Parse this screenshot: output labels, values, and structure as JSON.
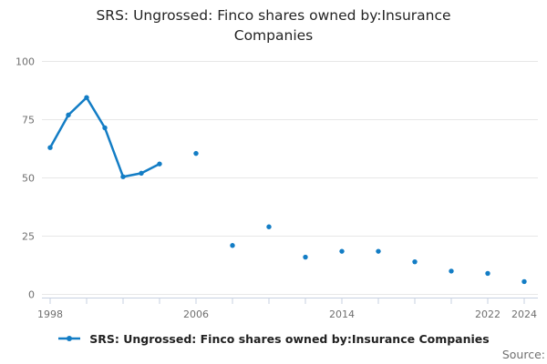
{
  "title": "SRS: Ungrossed: Finco shares owned by:Insurance Companies",
  "legend": {
    "label": "SRS: Ungrossed: Finco shares owned by:Insurance Companies",
    "marker": "line-with-dot"
  },
  "source_label": "Source:",
  "colors": {
    "line": "#137DC5",
    "grid": "#e7e7e7",
    "axis": "#c7d1e2",
    "tick_text": "#6f6f6f",
    "title_text": "#242424",
    "legend_text": "#222222",
    "source_text": "#707070"
  },
  "chart_data": {
    "type": "line",
    "title": "SRS: Ungrossed: Finco shares owned by:Insurance Companies",
    "xlabel": "",
    "ylabel": "",
    "ylim": [
      0,
      100
    ],
    "xlim": [
      1998,
      2024
    ],
    "yticks": [
      0,
      25,
      50,
      75,
      100
    ],
    "xticks": [
      1998,
      2000,
      2002,
      2004,
      2006,
      2008,
      2010,
      2012,
      2014,
      2016,
      2018,
      2020,
      2022,
      2024
    ],
    "xtick_labels_shown": [
      "1998",
      "2006",
      "2014",
      "2022",
      "2024"
    ],
    "grid": "horizontal-only",
    "legend_position": "bottom-center",
    "series": [
      {
        "name": "SRS: Ungrossed: Finco shares owned by:Insurance Companies",
        "points": [
          [
            1998,
            63
          ],
          [
            1999,
            77
          ],
          [
            2000,
            84.5
          ],
          [
            2001,
            71.5
          ],
          [
            2002,
            50.5
          ],
          [
            2003,
            52
          ],
          [
            2004,
            56
          ],
          [
            2006,
            60.5
          ],
          [
            2008,
            21
          ],
          [
            2010,
            29
          ],
          [
            2012,
            16
          ],
          [
            2014,
            18.5
          ],
          [
            2016,
            18.5
          ],
          [
            2018,
            14
          ],
          [
            2020,
            10
          ],
          [
            2022,
            9
          ],
          [
            2024,
            5.5
          ]
        ],
        "note": "line breaks where years are missing; isolated years render as dots"
      }
    ]
  }
}
